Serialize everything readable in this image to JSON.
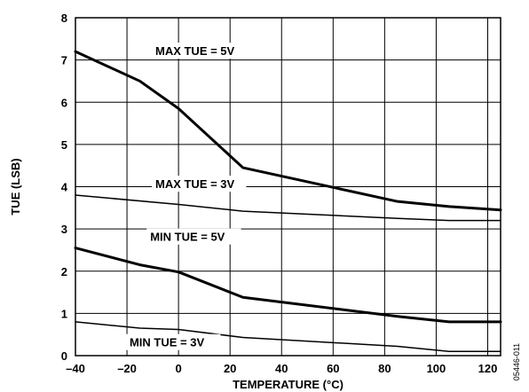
{
  "chart_data": {
    "type": "line",
    "xlabel": "TEMPERATURE (°C)",
    "ylabel": "TUE (LSB)",
    "xlim": [
      -40,
      125
    ],
    "ylim": [
      0,
      8
    ],
    "x_ticks": [
      -40,
      -20,
      0,
      20,
      40,
      60,
      80,
      100,
      120
    ],
    "y_ticks": [
      0,
      1,
      2,
      3,
      4,
      5,
      6,
      7,
      8
    ],
    "x_tick_labels": [
      "–40",
      "–20",
      "0",
      "20",
      "40",
      "60",
      "80",
      "100",
      "120"
    ],
    "y_tick_labels": [
      "0",
      "1",
      "2",
      "3",
      "4",
      "5",
      "6",
      "7",
      "8"
    ],
    "grid": true,
    "series": [
      {
        "name": "MAX TUE = 5V",
        "weight": "thick",
        "x": [
          -40,
          -15,
          0,
          25,
          85,
          105,
          125
        ],
        "y": [
          7.2,
          6.5,
          5.85,
          4.45,
          3.65,
          3.53,
          3.45
        ]
      },
      {
        "name": "MAX TUE = 3V",
        "weight": "thin",
        "x": [
          -40,
          0,
          25,
          85,
          105,
          125
        ],
        "y": [
          3.8,
          3.58,
          3.42,
          3.25,
          3.2,
          3.2
        ]
      },
      {
        "name": "MIN TUE = 5V",
        "weight": "thick",
        "x": [
          -40,
          -15,
          0,
          25,
          85,
          105,
          125
        ],
        "y": [
          2.55,
          2.15,
          1.98,
          1.38,
          0.93,
          0.8,
          0.8
        ]
      },
      {
        "name": "MIN TUE = 3V",
        "weight": "thin",
        "x": [
          -40,
          -15,
          0,
          25,
          85,
          105,
          125
        ],
        "y": [
          0.8,
          0.65,
          0.62,
          0.43,
          0.22,
          0.1,
          0.1
        ]
      }
    ],
    "annotations": [
      {
        "text": "MAX TUE = 5V",
        "x": -9,
        "y": 7.2
      },
      {
        "text": "MAX TUE = 3V",
        "x": -9,
        "y": 4.05
      },
      {
        "text": "MIN TUE = 5V",
        "x": -11,
        "y": 2.8
      },
      {
        "text": "MIN TUE = 3V",
        "x": -19,
        "y": 0.3
      }
    ],
    "figure_id": "05446-011"
  }
}
